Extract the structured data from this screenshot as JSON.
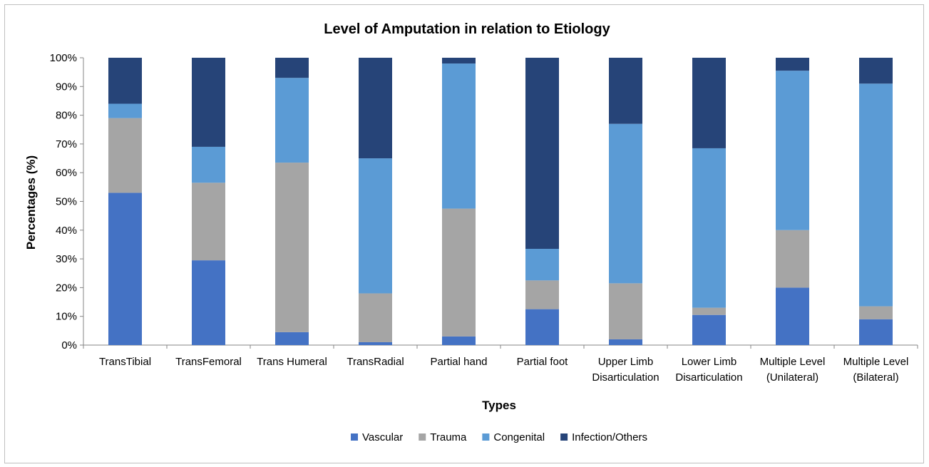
{
  "chart_data": {
    "type": "bar",
    "stacked": true,
    "normalized_percent": true,
    "title": "Level of Amputation in relation to Etiology",
    "xlabel": "Types",
    "ylabel": "Percentages (%)",
    "ylim": [
      0,
      100
    ],
    "yticks": [
      "0%",
      "10%",
      "20%",
      "30%",
      "40%",
      "50%",
      "60%",
      "70%",
      "80%",
      "90%",
      "100%"
    ],
    "categories": [
      [
        "TransTibial"
      ],
      [
        "TransFemoral"
      ],
      [
        "Trans Humeral"
      ],
      [
        "TransRadial"
      ],
      [
        "Partial hand"
      ],
      [
        "Partial foot"
      ],
      [
        "Upper Limb",
        "Disarticulation"
      ],
      [
        "Lower Limb",
        "Disarticulation"
      ],
      [
        "Multiple Level",
        "(Unilateral)"
      ],
      [
        "Multiple Level",
        "(Bilateral)"
      ]
    ],
    "series": [
      {
        "name": "Vascular",
        "color": "#4472C4",
        "values": [
          53,
          29.5,
          4.5,
          1,
          3,
          12.5,
          2,
          10.5,
          20,
          9
        ]
      },
      {
        "name": "Trauma",
        "color": "#A5A5A5",
        "values": [
          26,
          27,
          59,
          17,
          44.5,
          10,
          19.5,
          2.5,
          20,
          4.5
        ]
      },
      {
        "name": "Congenital",
        "color": "#5B9BD5",
        "values": [
          5,
          12.5,
          29.5,
          47,
          50.5,
          11,
          55.5,
          55.5,
          55.5,
          77.5
        ]
      },
      {
        "name": "Infection/Others",
        "color": "#264478",
        "values": [
          16,
          31,
          7,
          35,
          2,
          66.5,
          23,
          31.5,
          4.5,
          9
        ]
      }
    ],
    "legend_position": "bottom",
    "grid": false
  }
}
